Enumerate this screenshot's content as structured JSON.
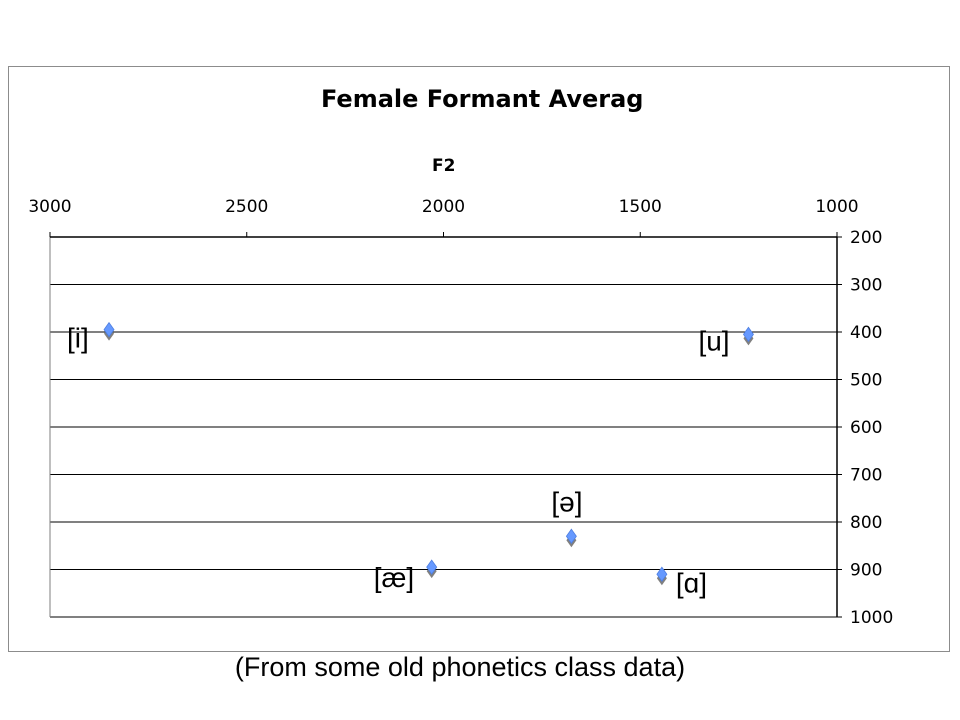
{
  "chart_data": {
    "type": "scatter",
    "title": "Female Formant Averag",
    "xlabel": "F2",
    "ylabel": "",
    "xlim": [
      3000,
      1000
    ],
    "ylim": [
      200,
      1000
    ],
    "x_reversed": true,
    "y_reversed": true,
    "x_axis_position": "top",
    "y_axis_position": "right",
    "x_ticks": [
      "3000",
      "2500",
      "2000",
      "1500",
      "1000"
    ],
    "y_ticks": [
      "200",
      "300",
      "400",
      "500",
      "600",
      "700",
      "800",
      "900",
      "1000"
    ],
    "grid": "horizontal",
    "legend": "none",
    "marker": "diamond",
    "marker_color": "#6699ff",
    "points": [
      {
        "label": "[i]",
        "x": 2850,
        "y": 395
      },
      {
        "label": "[u]",
        "x": 1225,
        "y": 405
      },
      {
        "label": "[ə]",
        "x": 1675,
        "y": 830
      },
      {
        "label": "[æ]",
        "x": 2030,
        "y": 895
      },
      {
        "label": "[ɑ]",
        "x": 1445,
        "y": 910
      }
    ]
  },
  "caption": "(From some old phonetics class data)"
}
